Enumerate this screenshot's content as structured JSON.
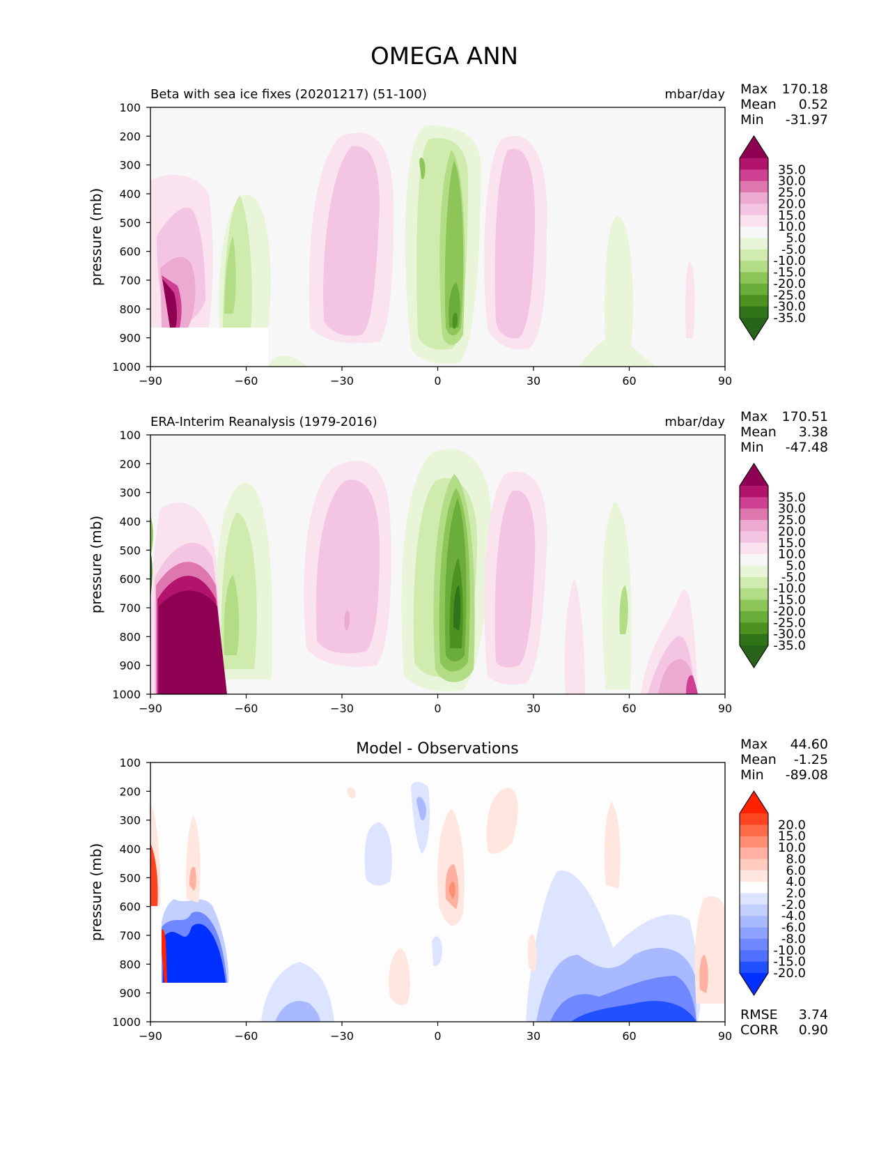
{
  "figure": {
    "title": "OMEGA ANN"
  },
  "chart_data": [
    {
      "type": "heatmap",
      "panel": "test",
      "title": "Beta with sea ice fixes (20201217) (51-100)",
      "units": "mbar/day",
      "xlabel": "",
      "ylabel": "pressure (mb)",
      "xlim": [
        -90,
        90
      ],
      "ylim": [
        1000,
        100
      ],
      "xticks": [
        -90,
        -60,
        -30,
        0,
        30,
        60,
        90
      ],
      "xtick_labels": [
        "−90",
        "−60",
        "−30",
        "0",
        "30",
        "60",
        "90"
      ],
      "yticks": [
        100,
        200,
        300,
        400,
        500,
        600,
        700,
        800,
        900,
        1000
      ],
      "stats": {
        "labels": [
          "Max",
          "Mean",
          "Min"
        ],
        "values": [
          "170.18",
          "0.52",
          "-31.97"
        ]
      },
      "colorbar": {
        "labels": [
          "35.0",
          "30.0",
          "25.0",
          "20.0",
          "15.0",
          "10.0",
          "5.0",
          "-5.0",
          "-10.0",
          "-15.0",
          "-20.0",
          "-25.0",
          "-30.0",
          "-35.0"
        ],
        "colors": [
          "#8e0152",
          "#b2136c",
          "#cd4092",
          "#de77ae",
          "#edaad1",
          "#f4c5e2",
          "#fae2ef",
          "#f7f7f7",
          "#e9f5d9",
          "#cfebae",
          "#b2dd86",
          "#8ec558",
          "#6aad3b",
          "#4d9221",
          "#2f7418",
          "#276419"
        ]
      }
    },
    {
      "type": "heatmap",
      "panel": "reference",
      "title": "ERA-Interim Reanalysis (1979-2016)",
      "units": "mbar/day",
      "xlabel": "",
      "ylabel": "pressure (mb)",
      "xlim": [
        -90,
        90
      ],
      "ylim": [
        1000,
        100
      ],
      "xticks": [
        -90,
        -60,
        -30,
        0,
        30,
        60,
        90
      ],
      "xtick_labels": [
        "−90",
        "−60",
        "−30",
        "0",
        "30",
        "60",
        "90"
      ],
      "yticks": [
        100,
        200,
        300,
        400,
        500,
        600,
        700,
        800,
        900,
        1000
      ],
      "stats": {
        "labels": [
          "Max",
          "Mean",
          "Min"
        ],
        "values": [
          "170.51",
          "3.38",
          "-47.48"
        ]
      },
      "colorbar": {
        "labels": [
          "35.0",
          "30.0",
          "25.0",
          "20.0",
          "15.0",
          "10.0",
          "5.0",
          "-5.0",
          "-10.0",
          "-15.0",
          "-20.0",
          "-25.0",
          "-30.0",
          "-35.0"
        ],
        "colors": [
          "#8e0152",
          "#b2136c",
          "#cd4092",
          "#de77ae",
          "#edaad1",
          "#f4c5e2",
          "#fae2ef",
          "#f7f7f7",
          "#e9f5d9",
          "#cfebae",
          "#b2dd86",
          "#8ec558",
          "#6aad3b",
          "#4d9221",
          "#2f7418",
          "#276419"
        ]
      }
    },
    {
      "type": "heatmap",
      "panel": "difference",
      "title": "Model - Observations",
      "units": "",
      "xlabel": "",
      "ylabel": "pressure (mb)",
      "xlim": [
        -90,
        90
      ],
      "ylim": [
        1000,
        100
      ],
      "xticks": [
        -90,
        -60,
        -30,
        0,
        30,
        60,
        90
      ],
      "xtick_labels": [
        "−90",
        "−60",
        "−30",
        "0",
        "30",
        "60",
        "90"
      ],
      "yticks": [
        100,
        200,
        300,
        400,
        500,
        600,
        700,
        800,
        900,
        1000
      ],
      "stats": {
        "labels": [
          "Max",
          "Mean",
          "Min"
        ],
        "values": [
          "44.60",
          "-1.25",
          "-89.08"
        ]
      },
      "extra_stats": {
        "labels": [
          "RMSE",
          "CORR"
        ],
        "values": [
          "3.74",
          "0.90"
        ]
      },
      "colorbar": {
        "labels": [
          "20.0",
          "15.0",
          "10.0",
          "8.0",
          "6.0",
          "4.0",
          "2.0",
          "-2.0",
          "-4.0",
          "-6.0",
          "-8.0",
          "-10.0",
          "-15.0",
          "-20.0"
        ],
        "colors": [
          "#ff2200",
          "#ff4422",
          "#ff6a48",
          "#ff8e72",
          "#ffb0a0",
          "#ffccbf",
          "#ffe6de",
          "#fdfdfd",
          "#dce4ff",
          "#c2cfff",
          "#a8b9ff",
          "#8ea3ff",
          "#7088ff",
          "#5070ff",
          "#2050ff",
          "#0030ff"
        ]
      }
    }
  ]
}
